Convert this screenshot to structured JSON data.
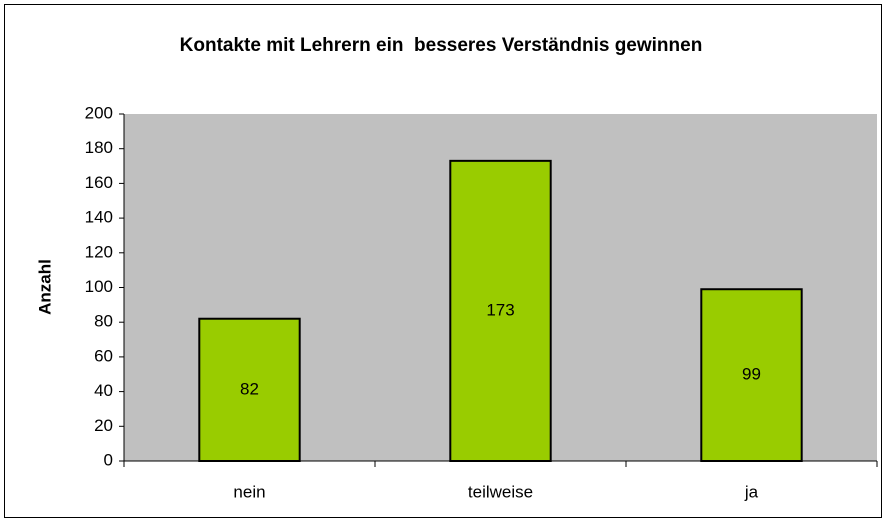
{
  "chart_data": {
    "type": "bar",
    "title": "Kontakte mit Lehrern ein  besseres Verständnis gewinnen",
    "ylabel": "Anzahl",
    "categories": [
      "nein",
      "teilweise",
      "ja"
    ],
    "values": [
      82,
      173,
      99
    ],
    "color": "#99cc00",
    "ylim": [
      0,
      200
    ],
    "yticks": [
      0,
      20,
      40,
      60,
      80,
      100,
      120,
      140,
      160,
      180,
      200
    ],
    "grid": false
  }
}
